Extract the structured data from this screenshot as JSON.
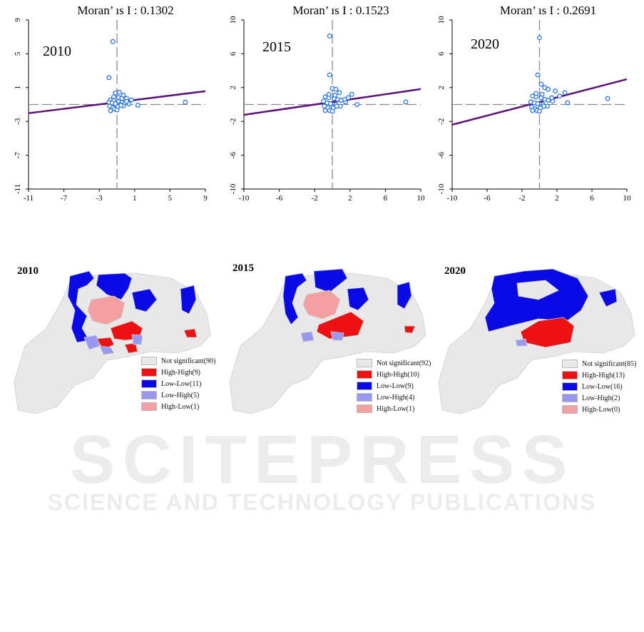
{
  "scatter_titles": [
    "Moran’ ıs I :  0.1302",
    "Moran’ ıs I :  0.1523",
    "Moran’ ıs I :  0.2691"
  ],
  "chart_data": [
    {
      "type": "scatter",
      "year": "2010",
      "title": "Moran’ ıs I :  0.1302",
      "xlim": [
        -11,
        11
      ],
      "ylim": [
        -11,
        11
      ],
      "xticks": [
        "-11",
        "-7",
        "-3",
        "1",
        "5",
        "9"
      ],
      "yticks": [
        "-11",
        "-7",
        "-3",
        "1",
        "5",
        "9"
      ],
      "points": [
        [
          -0.5,
          8.2
        ],
        [
          -1.0,
          3.5
        ],
        [
          -0.2,
          1.5
        ],
        [
          0.3,
          1.6
        ],
        [
          0.8,
          1.2
        ],
        [
          1.2,
          0.8
        ],
        [
          -0.8,
          0.6
        ],
        [
          -0.4,
          0.5
        ],
        [
          0.2,
          0.4
        ],
        [
          0.6,
          0.3
        ],
        [
          1.0,
          0.2
        ],
        [
          1.5,
          0.1
        ],
        [
          -1.0,
          0.3
        ],
        [
          -0.6,
          0.2
        ],
        [
          -0.2,
          0.1
        ],
        [
          0.4,
          0.0
        ],
        [
          0.8,
          -0.2
        ],
        [
          1.2,
          0.4
        ],
        [
          -0.9,
          -0.2
        ],
        [
          -0.5,
          -0.4
        ],
        [
          0.1,
          -0.3
        ],
        [
          0.5,
          -0.1
        ],
        [
          -0.3,
          -0.6
        ],
        [
          0.0,
          -0.7
        ],
        [
          -0.8,
          -0.8
        ],
        [
          -0.4,
          1.0
        ],
        [
          0.2,
          0.9
        ],
        [
          0.6,
          0.8
        ],
        [
          1.8,
          0.6
        ],
        [
          2.6,
          -0.1
        ],
        [
          8.5,
          0.3
        ]
      ],
      "fit": {
        "slope": 0.1302,
        "intercept": 0.3
      },
      "ref_lines": {
        "x": 0,
        "y": 0
      }
    },
    {
      "type": "scatter",
      "year": "2015",
      "title": "Moran’ ıs I :  0.1523",
      "xlim": [
        -10,
        10
      ],
      "ylim": [
        -10,
        10
      ],
      "xticks": [
        "-10",
        "-6",
        "-2",
        "2",
        "6",
        "10"
      ],
      "yticks": [
        "-10",
        "-6",
        "-2",
        "2",
        "6",
        "10"
      ],
      "points": [
        [
          -0.3,
          8.1
        ],
        [
          -0.3,
          3.5
        ],
        [
          0.0,
          1.9
        ],
        [
          0.4,
          1.8
        ],
        [
          0.8,
          1.4
        ],
        [
          -0.8,
          0.9
        ],
        [
          -0.4,
          0.8
        ],
        [
          0.2,
          0.7
        ],
        [
          0.6,
          0.6
        ],
        [
          1.0,
          0.5
        ],
        [
          1.5,
          0.3
        ],
        [
          -1.0,
          0.4
        ],
        [
          -0.6,
          0.2
        ],
        [
          -0.2,
          0.1
        ],
        [
          0.4,
          0.0
        ],
        [
          0.9,
          -0.2
        ],
        [
          1.4,
          0.6
        ],
        [
          -0.9,
          -0.2
        ],
        [
          -0.5,
          -0.4
        ],
        [
          0.1,
          -0.4
        ],
        [
          0.5,
          -0.2
        ],
        [
          -0.3,
          -0.7
        ],
        [
          0.0,
          -0.8
        ],
        [
          -0.8,
          -0.7
        ],
        [
          -0.4,
          1.2
        ],
        [
          0.3,
          1.1
        ],
        [
          1.8,
          0.8
        ],
        [
          2.2,
          1.2
        ],
        [
          2.8,
          0.0
        ],
        [
          8.3,
          0.3
        ]
      ],
      "fit": {
        "slope": 0.1523,
        "intercept": 0.3
      },
      "ref_lines": {
        "x": 0,
        "y": 0
      }
    },
    {
      "type": "scatter",
      "year": "2020",
      "title": "Moran’ ıs I :  0.2691",
      "xlim": [
        -10,
        10
      ],
      "ylim": [
        -10,
        10
      ],
      "xticks": [
        "-10",
        "-6",
        "-2",
        "2",
        "6",
        "10"
      ],
      "yticks": [
        "-10",
        "-6",
        "-2",
        "2",
        "6",
        "10"
      ],
      "points": [
        [
          0.0,
          7.9
        ],
        [
          -0.2,
          3.5
        ],
        [
          0.2,
          2.4
        ],
        [
          0.6,
          2.0
        ],
        [
          1.0,
          1.8
        ],
        [
          -0.8,
          1.0
        ],
        [
          -0.4,
          0.9
        ],
        [
          0.2,
          0.8
        ],
        [
          0.6,
          0.6
        ],
        [
          1.0,
          0.5
        ],
        [
          1.5,
          0.4
        ],
        [
          -1.0,
          0.3
        ],
        [
          -0.6,
          0.2
        ],
        [
          -0.2,
          0.1
        ],
        [
          0.4,
          0.0
        ],
        [
          0.9,
          -0.2
        ],
        [
          1.4,
          0.8
        ],
        [
          -0.9,
          -0.3
        ],
        [
          -0.5,
          -0.5
        ],
        [
          0.1,
          -0.4
        ],
        [
          0.5,
          -0.2
        ],
        [
          -0.3,
          -0.7
        ],
        [
          0.0,
          -0.8
        ],
        [
          -0.8,
          -0.7
        ],
        [
          -0.4,
          1.3
        ],
        [
          0.3,
          1.2
        ],
        [
          1.8,
          1.6
        ],
        [
          2.3,
          1.0
        ],
        [
          2.9,
          1.4
        ],
        [
          3.2,
          0.2
        ],
        [
          7.8,
          0.7
        ]
      ],
      "fit": {
        "slope": 0.2691,
        "intercept": 0.3
      },
      "ref_lines": {
        "x": 0,
        "y": 0
      }
    }
  ],
  "maps": [
    {
      "year": "2010",
      "legend": [
        "Not significant(90)",
        "High-High(9)",
        "Low-Low(11)",
        "Low-High(5)",
        "High-Low(1)"
      ]
    },
    {
      "year": "2015",
      "legend": [
        "Not significant(92)",
        "High-High(10)",
        "Low-Low(9)",
        "Low-High(4)",
        "High-Low(1)"
      ]
    },
    {
      "year": "2020",
      "legend": [
        "Not significant(85)",
        "High-High(13)",
        "Low-Low(16)",
        "Low-High(2)",
        "High-Low(0)"
      ]
    }
  ],
  "legend_colors": [
    "#e8e8e8",
    "#ee1111",
    "#0a0ae6",
    "#9898f0",
    "#f4a0a0"
  ],
  "colors": {
    "points": "#1f6fe0",
    "fit_line": "#5e1078",
    "ref_line": "#888888",
    "map_base": "#ececec"
  },
  "watermark": {
    "line1": "SCITEPRESS",
    "line2": "SCIENCE AND TECHNOLOGY PUBLICATIONS"
  }
}
